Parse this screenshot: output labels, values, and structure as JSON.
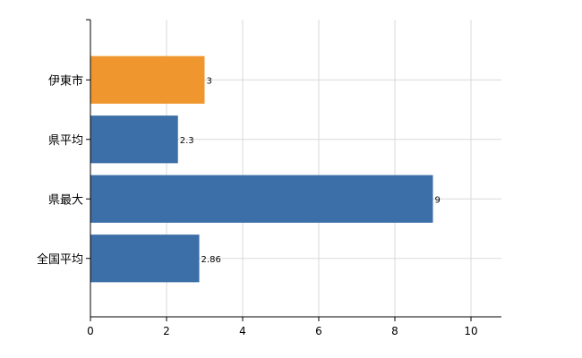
{
  "chart_data": {
    "type": "bar",
    "orientation": "horizontal",
    "categories": [
      "伊東市",
      "県平均",
      "県最大",
      "全国平均"
    ],
    "values": [
      3,
      2.3,
      9,
      2.86
    ],
    "value_labels": [
      "3",
      "2.3",
      "9",
      "2.86"
    ],
    "bar_colors": [
      "#f0962e",
      "#3c6ea8",
      "#3c6ea8",
      "#3c6ea8"
    ],
    "highlight_color": "#f0962e",
    "base_color": "#3c6ea8",
    "xlim": [
      0,
      10.8
    ],
    "xticks": [
      0,
      2,
      4,
      6,
      8,
      10
    ],
    "title": "",
    "xlabel": "",
    "ylabel": "",
    "grid": true,
    "legend": false
  }
}
